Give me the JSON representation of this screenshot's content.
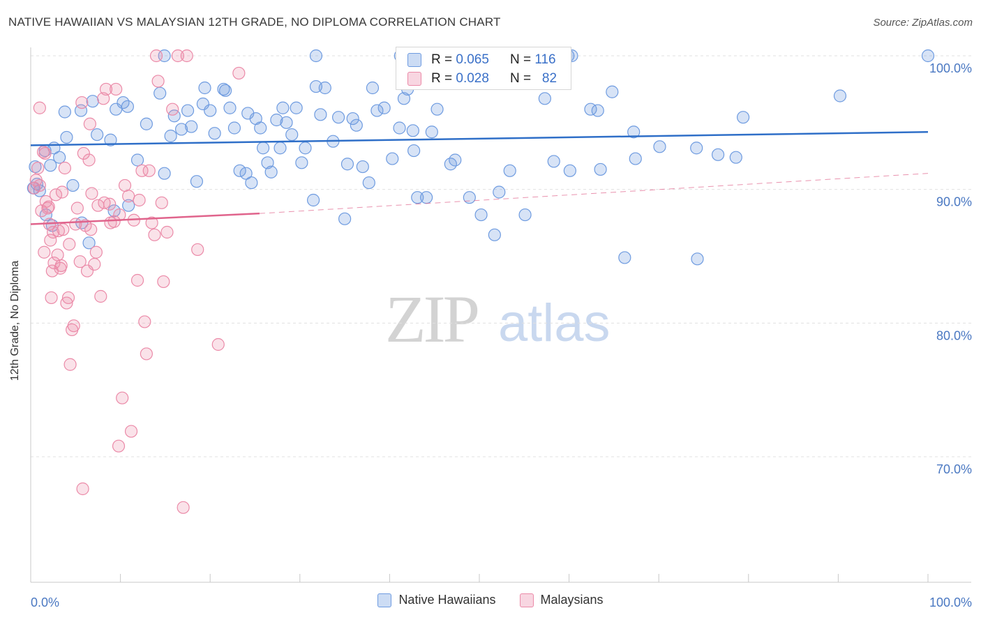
{
  "title": "NATIVE HAWAIIAN VS MALAYSIAN 12TH GRADE, NO DIPLOMA CORRELATION CHART",
  "source": "Source: ZipAtlas.com",
  "watermark": {
    "zip": "ZIP",
    "atlas": "atlas"
  },
  "stats_box": {
    "row1": {
      "r_label": "R =",
      "r_value": "0.065",
      "n_label": "N =",
      "n_value": "116"
    },
    "row2": {
      "r_label": "R =",
      "r_value": "0.028",
      "n_label": "N =",
      "n_value": "82"
    }
  },
  "colors": {
    "blue": "#6e9be0",
    "blue_fill": "rgba(110,155,224,0.28)",
    "blue_line": "#2f6fc8",
    "pink": "#eb8aa8",
    "pink_fill": "rgba(235,138,168,0.25)",
    "pink_line": "#e0648c",
    "axis_text": "#4a78c2",
    "grid": "#e0e0e0"
  },
  "chart_data": {
    "type": "scatter",
    "title": "NATIVE HAWAIIAN VS MALAYSIAN 12TH GRADE, NO DIPLOMA CORRELATION CHART",
    "xlabel": "",
    "ylabel": "12th Grade, No Diploma",
    "xlim": [
      0,
      100
    ],
    "ylim": [
      59.5,
      100.5
    ],
    "x_tick_labels": [
      "0.0%",
      "100.0%"
    ],
    "y_ticks": [
      70,
      80,
      90,
      100
    ],
    "y_tick_labels": [
      "70.0%",
      "80.0%",
      "90.0%",
      "100.0%"
    ],
    "grid": true,
    "legend_position": "bottom",
    "series": [
      {
        "name": "Native Hawaiians",
        "color": "#6e9be0",
        "trend": {
          "x": [
            0,
            100
          ],
          "y": [
            93.3,
            94.3
          ],
          "dashed_to": null
        },
        "points": [
          [
            1.6,
            92.9
          ],
          [
            2.6,
            93.1
          ],
          [
            4.0,
            93.9
          ],
          [
            3.8,
            95.8
          ],
          [
            5.6,
            95.9
          ],
          [
            6.9,
            96.6
          ],
          [
            9.5,
            96.0
          ],
          [
            10.3,
            96.5
          ],
          [
            10.8,
            96.2
          ],
          [
            12.9,
            94.9
          ],
          [
            14.4,
            97.2
          ],
          [
            14.9,
            91.2
          ],
          [
            15.6,
            94.0
          ],
          [
            16.0,
            95.5
          ],
          [
            16.8,
            94.5
          ],
          [
            17.5,
            95.9
          ],
          [
            17.9,
            94.7
          ],
          [
            18.5,
            90.6
          ],
          [
            19.2,
            96.4
          ],
          [
            19.4,
            97.6
          ],
          [
            20.0,
            95.9
          ],
          [
            20.5,
            94.2
          ],
          [
            21.5,
            97.5
          ],
          [
            21.7,
            97.4
          ],
          [
            22.2,
            96.1
          ],
          [
            22.7,
            94.6
          ],
          [
            23.3,
            91.4
          ],
          [
            24.0,
            91.2
          ],
          [
            24.2,
            95.7
          ],
          [
            24.6,
            90.5
          ],
          [
            25.1,
            95.3
          ],
          [
            25.6,
            94.6
          ],
          [
            25.9,
            93.1
          ],
          [
            26.4,
            92.0
          ],
          [
            26.8,
            91.3
          ],
          [
            27.4,
            95.2
          ],
          [
            27.8,
            93.1
          ],
          [
            28.1,
            96.1
          ],
          [
            28.5,
            95.0
          ],
          [
            29.1,
            94.1
          ],
          [
            29.6,
            96.1
          ],
          [
            30.2,
            92.0
          ],
          [
            30.6,
            93.1
          ],
          [
            31.5,
            89.2
          ],
          [
            31.8,
            97.7
          ],
          [
            32.3,
            95.6
          ],
          [
            32.8,
            97.6
          ],
          [
            33.7,
            93.6
          ],
          [
            34.3,
            95.4
          ],
          [
            35.0,
            87.8
          ],
          [
            35.3,
            91.9
          ],
          [
            35.9,
            95.3
          ],
          [
            36.3,
            94.8
          ],
          [
            37.0,
            91.7
          ],
          [
            37.7,
            90.5
          ],
          [
            38.1,
            97.6
          ],
          [
            38.6,
            95.9
          ],
          [
            39.4,
            96.1
          ],
          [
            40.3,
            92.3
          ],
          [
            41.1,
            94.6
          ],
          [
            41.6,
            96.8
          ],
          [
            42.0,
            97.5
          ],
          [
            42.6,
            94.4
          ],
          [
            42.7,
            92.9
          ],
          [
            43.1,
            89.4
          ],
          [
            44.1,
            89.4
          ],
          [
            44.7,
            94.3
          ],
          [
            45.3,
            96.0
          ],
          [
            46.8,
            91.9
          ],
          [
            47.3,
            92.2
          ],
          [
            48.9,
            89.4
          ],
          [
            50.2,
            88.1
          ],
          [
            51.7,
            86.6
          ],
          [
            52.2,
            89.8
          ],
          [
            53.4,
            91.4
          ],
          [
            55.1,
            88.1
          ],
          [
            57.3,
            96.8
          ],
          [
            58.3,
            92.1
          ],
          [
            60.1,
            91.4
          ],
          [
            62.4,
            96.0
          ],
          [
            63.2,
            95.9
          ],
          [
            63.5,
            91.5
          ],
          [
            64.8,
            97.3
          ],
          [
            66.2,
            84.9
          ],
          [
            67.2,
            94.3
          ],
          [
            67.4,
            92.3
          ],
          [
            70.1,
            93.2
          ],
          [
            74.2,
            93.1
          ],
          [
            74.3,
            84.8
          ],
          [
            76.6,
            92.6
          ],
          [
            78.6,
            92.4
          ],
          [
            79.4,
            95.4
          ],
          [
            90.2,
            97.0
          ],
          [
            100,
            100
          ],
          [
            60.3,
            100
          ],
          [
            59.9,
            100
          ],
          [
            41.2,
            100
          ],
          [
            31.8,
            100
          ],
          [
            14.9,
            100
          ],
          [
            0.3,
            90.1
          ],
          [
            0.5,
            91.7
          ],
          [
            0.7,
            90.4
          ],
          [
            1.0,
            89.9
          ],
          [
            1.7,
            88.1
          ],
          [
            2.2,
            91.8
          ],
          [
            2.4,
            87.3
          ],
          [
            3.2,
            92.4
          ],
          [
            4.7,
            90.3
          ],
          [
            5.7,
            87.5
          ],
          [
            6.5,
            86.0
          ],
          [
            7.4,
            94.1
          ],
          [
            8.9,
            93.7
          ],
          [
            9.3,
            88.4
          ],
          [
            10.9,
            88.8
          ],
          [
            11.9,
            92.2
          ]
        ]
      },
      {
        "name": "Malaysians",
        "color": "#eb8aa8",
        "trend": {
          "x": [
            0,
            25.5
          ],
          "y": [
            87.4,
            88.2
          ],
          "dashed_to": [
            100,
            91.2
          ]
        },
        "points": [
          [
            0.4,
            90.1
          ],
          [
            0.6,
            90.7
          ],
          [
            0.8,
            91.6
          ],
          [
            1.0,
            90.3
          ],
          [
            1.2,
            88.4
          ],
          [
            1.4,
            92.8
          ],
          [
            1.5,
            85.3
          ],
          [
            1.7,
            89.1
          ],
          [
            1.9,
            88.6
          ],
          [
            2.1,
            87.4
          ],
          [
            2.2,
            86.2
          ],
          [
            2.3,
            81.9
          ],
          [
            2.4,
            83.9
          ],
          [
            2.6,
            84.5
          ],
          [
            2.8,
            89.6
          ],
          [
            3.0,
            85.1
          ],
          [
            3.1,
            86.9
          ],
          [
            3.3,
            84.1
          ],
          [
            3.4,
            84.3
          ],
          [
            3.6,
            87.0
          ],
          [
            3.8,
            91.6
          ],
          [
            4.0,
            81.5
          ],
          [
            4.2,
            81.9
          ],
          [
            4.4,
            76.9
          ],
          [
            4.6,
            79.5
          ],
          [
            4.8,
            79.8
          ],
          [
            5.0,
            87.4
          ],
          [
            5.2,
            88.6
          ],
          [
            5.5,
            84.6
          ],
          [
            5.7,
            96.5
          ],
          [
            6.1,
            87.3
          ],
          [
            6.3,
            83.9
          ],
          [
            6.5,
            92.2
          ],
          [
            6.6,
            94.9
          ],
          [
            6.8,
            89.7
          ],
          [
            7.1,
            84.4
          ],
          [
            7.3,
            85.3
          ],
          [
            7.5,
            88.8
          ],
          [
            7.8,
            82.0
          ],
          [
            8.1,
            96.8
          ],
          [
            8.4,
            97.5
          ],
          [
            8.8,
            88.9
          ],
          [
            8.9,
            87.5
          ],
          [
            9.3,
            87.6
          ],
          [
            9.5,
            97.5
          ],
          [
            9.9,
            88.1
          ],
          [
            10.2,
            74.4
          ],
          [
            10.5,
            90.3
          ],
          [
            10.9,
            89.5
          ],
          [
            11.2,
            71.9
          ],
          [
            11.5,
            87.7
          ],
          [
            11.9,
            83.2
          ],
          [
            12.4,
            91.4
          ],
          [
            12.7,
            80.1
          ],
          [
            12.9,
            77.7
          ],
          [
            13.2,
            91.4
          ],
          [
            13.5,
            87.5
          ],
          [
            14.0,
            100
          ],
          [
            14.2,
            98.1
          ],
          [
            14.8,
            83.1
          ],
          [
            15.2,
            86.8
          ],
          [
            15.8,
            96.0
          ],
          [
            16.4,
            100
          ],
          [
            17.4,
            100
          ],
          [
            18.6,
            85.5
          ],
          [
            20.9,
            78.4
          ],
          [
            23.2,
            98.7
          ],
          [
            17.0,
            66.2
          ],
          [
            5.8,
            67.6
          ],
          [
            9.8,
            70.8
          ],
          [
            1.0,
            96.1
          ],
          [
            1.6,
            92.7
          ],
          [
            2.0,
            88.7
          ],
          [
            2.5,
            86.8
          ],
          [
            3.5,
            89.8
          ],
          [
            4.3,
            85.9
          ],
          [
            5.9,
            92.7
          ],
          [
            6.7,
            87.0
          ],
          [
            8.2,
            89.0
          ],
          [
            12.1,
            89.2
          ],
          [
            13.8,
            86.6
          ],
          [
            14.6,
            89.0
          ]
        ]
      }
    ]
  }
}
